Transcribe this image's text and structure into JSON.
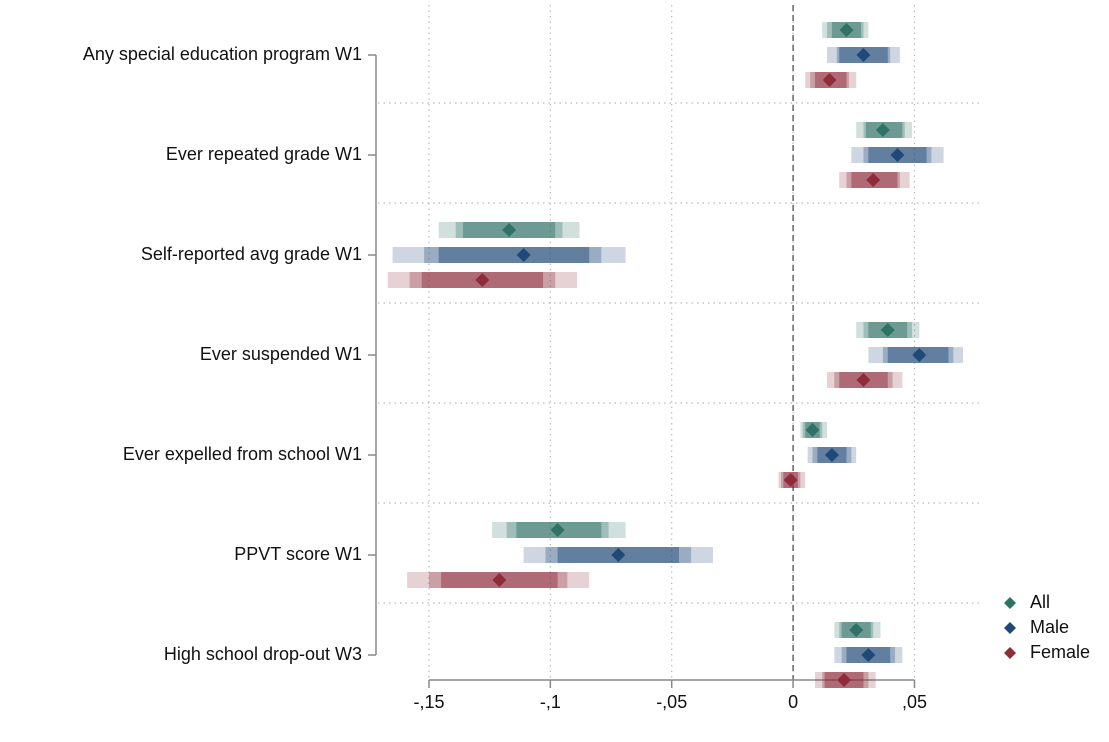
{
  "chart_data": {
    "type": "coefplot",
    "categories": [
      "Any special education program W1",
      "Ever repeated grade W1",
      "Self-reported avg grade W1",
      "Ever suspended W1",
      "Ever expelled from school W1",
      "PPVT score W1",
      "High school drop-out W3"
    ],
    "series": [
      {
        "name": "All",
        "color": "#2f7266",
        "values": [
          0.022,
          0.037,
          -0.117,
          0.039,
          0.008,
          -0.097,
          0.026
        ],
        "ci_outer": [
          [
            0.012,
            0.031
          ],
          [
            0.026,
            0.049
          ],
          [
            -0.146,
            -0.088
          ],
          [
            0.026,
            0.052
          ],
          [
            0.003,
            0.014
          ],
          [
            -0.124,
            -0.069
          ],
          [
            0.017,
            0.036
          ]
        ],
        "ci_mid": [
          [
            0.014,
            0.029
          ],
          [
            0.029,
            0.046
          ],
          [
            -0.139,
            -0.095
          ],
          [
            0.029,
            0.049
          ],
          [
            0.004,
            0.012
          ],
          [
            -0.118,
            -0.076
          ],
          [
            0.019,
            0.033
          ]
        ],
        "ci_inner": [
          [
            0.016,
            0.028
          ],
          [
            0.03,
            0.045
          ],
          [
            -0.136,
            -0.098
          ],
          [
            0.031,
            0.047
          ],
          [
            0.005,
            0.011
          ],
          [
            -0.114,
            -0.079
          ],
          [
            0.02,
            0.032
          ]
        ]
      },
      {
        "name": "Male",
        "color": "#1f4a78",
        "values": [
          0.029,
          0.043,
          -0.111,
          0.052,
          0.016,
          -0.072,
          0.031
        ],
        "ci_outer": [
          [
            0.014,
            0.044
          ],
          [
            0.024,
            0.062
          ],
          [
            -0.165,
            -0.069
          ],
          [
            0.031,
            0.07
          ],
          [
            0.006,
            0.026
          ],
          [
            -0.111,
            -0.033
          ],
          [
            0.017,
            0.045
          ]
        ],
        "ci_mid": [
          [
            0.018,
            0.04
          ],
          [
            0.029,
            0.057
          ],
          [
            -0.152,
            -0.079
          ],
          [
            0.037,
            0.066
          ],
          [
            0.008,
            0.024
          ],
          [
            -0.102,
            -0.042
          ],
          [
            0.02,
            0.042
          ]
        ],
        "ci_inner": [
          [
            0.019,
            0.039
          ],
          [
            0.031,
            0.055
          ],
          [
            -0.146,
            -0.084
          ],
          [
            0.039,
            0.064
          ],
          [
            0.01,
            0.022
          ],
          [
            -0.097,
            -0.047
          ],
          [
            0.022,
            0.04
          ]
        ]
      },
      {
        "name": "Female",
        "color": "#8e2c3a",
        "values": [
          0.015,
          0.033,
          -0.128,
          0.029,
          -0.001,
          -0.121,
          0.021
        ],
        "ci_outer": [
          [
            0.005,
            0.026
          ],
          [
            0.019,
            0.048
          ],
          [
            -0.167,
            -0.089
          ],
          [
            0.014,
            0.045
          ],
          [
            -0.006,
            0.005
          ],
          [
            -0.159,
            -0.084
          ],
          [
            0.009,
            0.034
          ]
        ],
        "ci_mid": [
          [
            0.007,
            0.023
          ],
          [
            0.022,
            0.044
          ],
          [
            -0.158,
            -0.098
          ],
          [
            0.017,
            0.041
          ],
          [
            -0.005,
            0.003
          ],
          [
            -0.15,
            -0.093
          ],
          [
            0.012,
            0.031
          ]
        ],
        "ci_inner": [
          [
            0.009,
            0.022
          ],
          [
            0.024,
            0.043
          ],
          [
            -0.153,
            -0.103
          ],
          [
            0.019,
            0.039
          ],
          [
            -0.004,
            0.002
          ],
          [
            -0.145,
            -0.097
          ],
          [
            0.013,
            0.029
          ]
        ]
      }
    ],
    "xlim": [
      -0.171,
      0.077
    ],
    "xticks": [
      {
        "value": -0.15,
        "label": "-,15"
      },
      {
        "value": -0.1,
        "label": "-,1"
      },
      {
        "value": -0.05,
        "label": "-,05"
      },
      0,
      {
        "value": 0.05,
        "label": ",05"
      }
    ],
    "reference_line": 0,
    "grid": true,
    "legend": "bottom-right"
  }
}
